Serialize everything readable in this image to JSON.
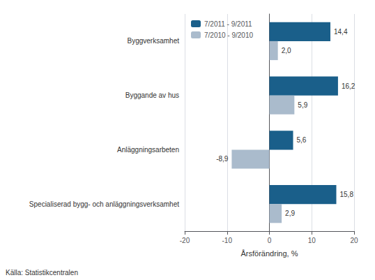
{
  "chart_data": {
    "type": "bar",
    "orientation": "horizontal",
    "categories": [
      "Byggverksamhet",
      "Byggande av hus",
      "Anläggningsarbeten",
      "Specialiserad bygg- och anläggningsverksamhet"
    ],
    "series": [
      {
        "name": "7/2011 - 9/2011",
        "color": "#1a5f8a",
        "values": [
          14.4,
          16.2,
          5.6,
          15.8
        ],
        "value_labels": [
          "14,4",
          "16,2",
          "5,6",
          "15,8"
        ]
      },
      {
        "name": "7/2010 - 9/2010",
        "color": "#aabbcc",
        "values": [
          2.0,
          5.9,
          -8.9,
          2.9
        ],
        "value_labels": [
          "2,0",
          "5,9",
          "-8,9",
          "2,9"
        ]
      }
    ],
    "xlabel": "Årsförändring, %",
    "annotation": "Källa: Statistikcentralen",
    "xlim": [
      -20,
      20
    ],
    "xticks": [
      -20,
      -10,
      0,
      10,
      20
    ],
    "grid": true,
    "legend": "upper left",
    "data_labels": true
  }
}
